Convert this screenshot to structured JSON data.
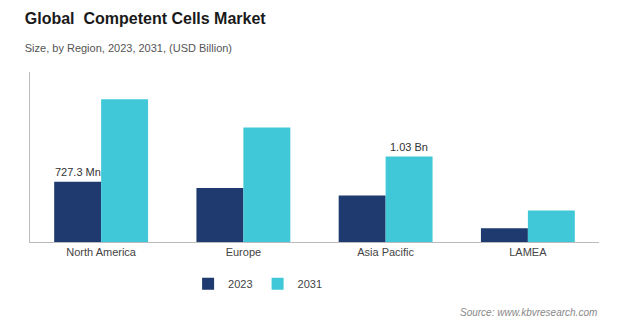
{
  "chart_data": {
    "type": "bar",
    "title": "Global  Competent Cells Market",
    "subtitle": "Size, by Region, 2023, 2031, (USD Billion)",
    "categories": [
      "North America",
      "Europe",
      "Asia Pacific",
      "LAMEA"
    ],
    "series": [
      {
        "name": "2023",
        "color": "#1e3a6e",
        "values": [
          0.7273,
          0.65,
          0.56,
          0.165
        ]
      },
      {
        "name": "2031",
        "color": "#40c8d8",
        "values": [
          1.72,
          1.38,
          1.03,
          0.38
        ]
      }
    ],
    "ylim": [
      0,
      2.05
    ],
    "yticks": [],
    "grid": false,
    "legend": "bottom",
    "tick_labels": "x",
    "annotations": [
      {
        "text": "727.3 Mn",
        "category": "North America",
        "series": "2023"
      },
      {
        "text": "1.03 Bn",
        "category": "Asia Pacific",
        "series": "2031"
      }
    ],
    "source": "Source: www.kbvresearch.com"
  }
}
